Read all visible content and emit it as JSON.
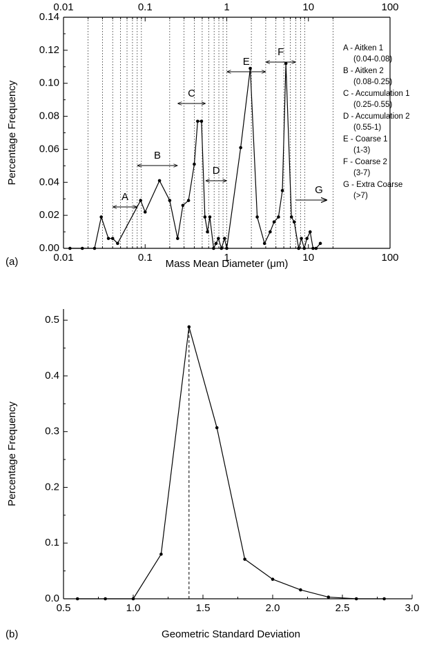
{
  "chart_data": [
    {
      "type": "line",
      "panel": "(a)",
      "x_label": "Mass Mean Diameter (μm)",
      "y_label": "Percentage Frequency",
      "log_x": true,
      "color": "#000000",
      "xlim": [
        0.01,
        100
      ],
      "xticks": [
        0.01,
        0.1,
        1,
        10,
        100
      ],
      "ylim": [
        0,
        0.14
      ],
      "yticks": [
        {
          "value": 0,
          "label": "0.00"
        },
        0.02,
        0.04,
        0.06,
        0.08,
        {
          "value": 0.1,
          "label": "0.10"
        },
        0.12,
        0.14
      ],
      "xgrid": [
        0.02,
        0.03,
        0.04,
        0.05,
        0.06,
        0.07,
        0.08,
        0.09,
        0.2,
        0.3,
        0.4,
        0.5,
        0.6,
        0.7,
        0.8,
        0.9,
        1,
        2,
        3,
        4,
        5,
        6,
        7,
        8,
        9,
        20
      ],
      "x": [
        0.012,
        0.017,
        0.024,
        0.029,
        0.0355,
        0.04,
        0.046,
        0.088,
        0.1,
        0.15,
        0.2,
        0.25,
        0.29,
        0.34,
        0.4,
        0.44,
        0.49,
        0.54,
        0.58,
        0.62,
        0.69,
        0.74,
        0.79,
        0.86,
        0.94,
        1,
        1.48,
        1.94,
        2.36,
        2.9,
        3.4,
        3.8,
        4.3,
        4.8,
        5.3,
        6.2,
        6.7,
        7.6,
        8.2,
        8.9,
        9.6,
        10.5,
        11.4,
        12.4,
        14
      ],
      "series": [
        {
          "name": "Percentage Frequency",
          "color": "#000000",
          "values": [
            0,
            0,
            0,
            0.019,
            0.006,
            0.006,
            0.003,
            0.029,
            0.022,
            0.041,
            0.029,
            0.006,
            0.026,
            0.029,
            0.051,
            0.077,
            0.077,
            0.019,
            0.01,
            0.019,
            0,
            0.003,
            0.006,
            0,
            0.006,
            0,
            0.061,
            0.109,
            0.019,
            0.003,
            0.01,
            0.016,
            0.019,
            0.035,
            0.112,
            0.019,
            0.016,
            0,
            0.006,
            0,
            0.006,
            0.01,
            0,
            0,
            0.003
          ]
        }
      ],
      "regions": [
        {
          "label": "A",
          "range": [
            0.04,
            0.08
          ]
        },
        {
          "label": "B",
          "range": [
            0.08,
            0.25
          ]
        },
        {
          "label": "C",
          "range": [
            0.25,
            0.55
          ]
        },
        {
          "label": "D",
          "range": [
            0.55,
            1
          ]
        },
        {
          "label": "E",
          "range": [
            1,
            3
          ]
        },
        {
          "label": "F",
          "range": [
            3,
            7
          ]
        },
        {
          "label": "G",
          "range": [
            7,
            17
          ]
        }
      ],
      "legend": [
        {
          "label": "A - Aitken 1",
          "range": "(0.04-0.08)"
        },
        {
          "label": "B - Aitken 2",
          "range": "(0.08-0.25)"
        },
        {
          "label": "C - Accumulation 1",
          "range": "(0.25-0.55)"
        },
        {
          "label": "D - Accumulation 2",
          "range": "(0.55-1)"
        },
        {
          "label": "E - Coarse 1",
          "range": "(1-3)"
        },
        {
          "label": "F - Coarse 2",
          "range": "(3-7)"
        },
        {
          "label": "G - Extra Coarse",
          "range": "(>7)"
        }
      ]
    },
    {
      "type": "line",
      "panel": "(b)",
      "x_label": "Geometric Standard Deviation",
      "y_label": "Percentage Frequency",
      "log_x": false,
      "color": "#000000",
      "xlim": [
        0.5,
        3
      ],
      "xticks": [
        0.5,
        {
          "value": 1,
          "label": "1.0"
        },
        1.5,
        {
          "value": 2,
          "label": "2.0"
        },
        2.5,
        {
          "value": 3,
          "label": "3.0"
        }
      ],
      "ylim": [
        0,
        0.52
      ],
      "yticks": [
        {
          "value": 0,
          "label": "0.0"
        },
        0.1,
        0.2,
        0.3,
        0.4,
        0.5
      ],
      "x": [
        0.6,
        0.8,
        1,
        1.2,
        1.4,
        1.6,
        1.8,
        2,
        2.2,
        2.4,
        2.6,
        2.8
      ],
      "series": [
        {
          "name": "Percentage Frequency",
          "color": "#000000",
          "values": [
            0,
            0,
            0,
            0.08,
            0.488,
            0.307,
            0.071,
            0.035,
            0.016,
            0.003,
            0,
            0
          ]
        }
      ],
      "peak_line": true
    }
  ]
}
